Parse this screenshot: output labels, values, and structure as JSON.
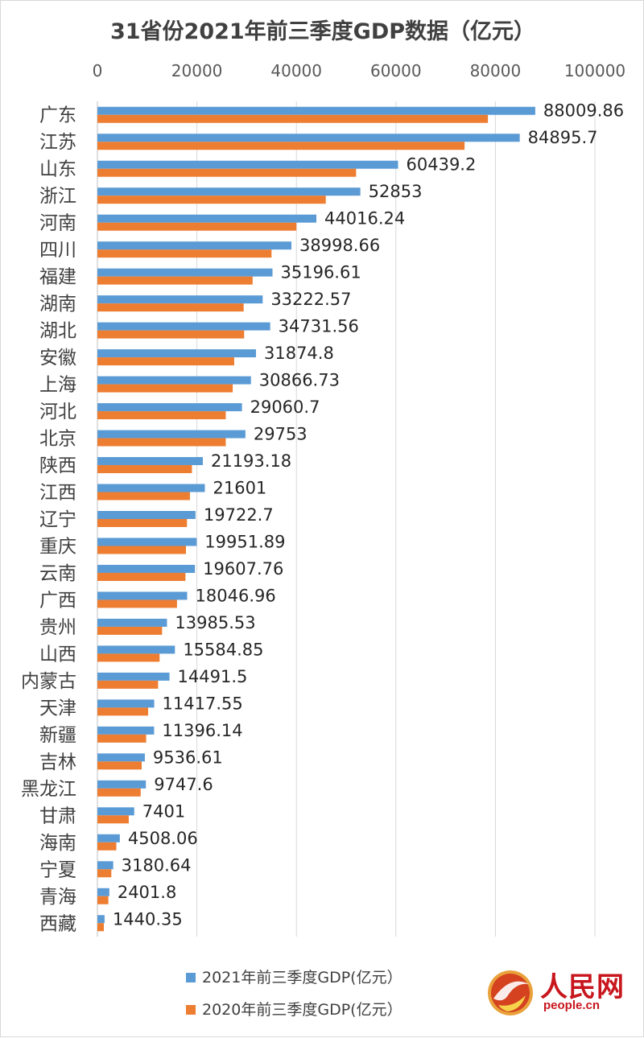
{
  "chart_data": {
    "type": "bar",
    "orientation": "horizontal",
    "title": "31省份2021年前三季度GDP数据（亿元）",
    "xlim": [
      0,
      100000
    ],
    "x_ticks": [
      "0",
      "20000",
      "40000",
      "60000",
      "80000",
      "100000"
    ],
    "grid": true,
    "legend_position": "bottom",
    "categories": [
      "广东",
      "江苏",
      "山东",
      "浙江",
      "河南",
      "四川",
      "福建",
      "湖南",
      "湖北",
      "安徽",
      "上海",
      "河北",
      "北京",
      "陕西",
      "江西",
      "辽宁",
      "重庆",
      "云南",
      "广西",
      "贵州",
      "山西",
      "内蒙古",
      "天津",
      "新疆",
      "吉林",
      "黑龙江",
      "甘肃",
      "海南",
      "宁夏",
      "青海",
      "西藏"
    ],
    "series": [
      {
        "name": "2021年前三季度GDP(亿元）",
        "color": "#5b9bd5",
        "values": [
          88009.86,
          84895.7,
          60439.2,
          52853,
          44016.24,
          38998.66,
          35196.61,
          33222.57,
          34731.56,
          31874.8,
          30866.73,
          29060.7,
          29753,
          21193.18,
          21601,
          19722.7,
          19951.89,
          19607.76,
          18046.96,
          13985.53,
          15584.85,
          14491.5,
          11417.55,
          11396.14,
          9536.61,
          9747.6,
          7401,
          4508.06,
          3180.64,
          2401.8,
          1440.35
        ],
        "labels": [
          "88009.86",
          "84895.7",
          "60439.2",
          "52853",
          "44016.24",
          "38998.66",
          "35196.61",
          "33222.57",
          "34731.56",
          "31874.8",
          "30866.73",
          "29060.7",
          "29753",
          "21193.18",
          "21601",
          "19722.7",
          "19951.89",
          "19607.76",
          "18046.96",
          "13985.53",
          "15584.85",
          "14491.5",
          "11417.55",
          "11396.14",
          "9536.61",
          "9747.6",
          "7401",
          "4508.06",
          "3180.64",
          "2401.8",
          "1440.35"
        ]
      },
      {
        "name": "2020年前三季度GDP(亿元）",
        "color": "#ed7d31",
        "values": [
          78500,
          73800,
          52000,
          45900,
          40000,
          35000,
          31200,
          29400,
          29500,
          27500,
          27200,
          25800,
          25800,
          19000,
          18600,
          18000,
          17800,
          17700,
          16000,
          13000,
          12500,
          12200,
          10200,
          9800,
          8900,
          8700,
          6300,
          3800,
          2800,
          2200,
          1300
        ]
      }
    ]
  },
  "watermark": {
    "text_cn": "人民网",
    "text_en": "people.cn"
  }
}
